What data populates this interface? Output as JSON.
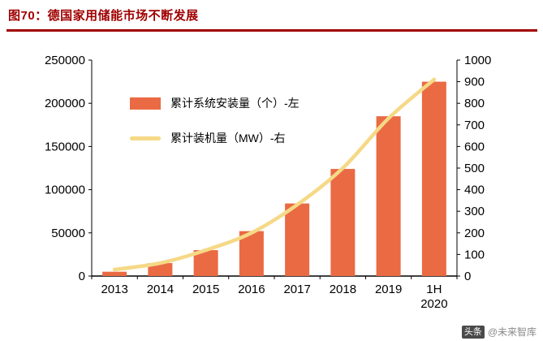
{
  "header": {
    "title": "图70：德国家用储能市场不断发展"
  },
  "footer": {
    "badge": "头条",
    "handle": "@未来智库"
  },
  "colors": {
    "bar": "#EA6A43",
    "line": "#F5D986",
    "title": "#A00000",
    "axis": "#000000"
  },
  "chart_data": {
    "type": "bar",
    "subtype": "bar+line combo, dual axis",
    "categories": [
      "2013",
      "2014",
      "2015",
      "2016",
      "2017",
      "2018",
      "2019",
      "1H 2020"
    ],
    "series": [
      {
        "name": "累计系统安装量（个）-左",
        "type": "bar",
        "axis": "left",
        "values": [
          5000,
          15000,
          30000,
          52000,
          84000,
          124000,
          185000,
          225000
        ]
      },
      {
        "name": "累计装机量（MW）-右",
        "type": "line",
        "axis": "right",
        "values": [
          30,
          60,
          120,
          200,
          330,
          500,
          730,
          910
        ]
      }
    ],
    "left_axis": {
      "min": 0,
      "max": 250000,
      "step": 50000
    },
    "right_axis": {
      "min": 0,
      "max": 1000,
      "step": 100
    },
    "grid": false,
    "legend_position": "top-left-inside"
  }
}
